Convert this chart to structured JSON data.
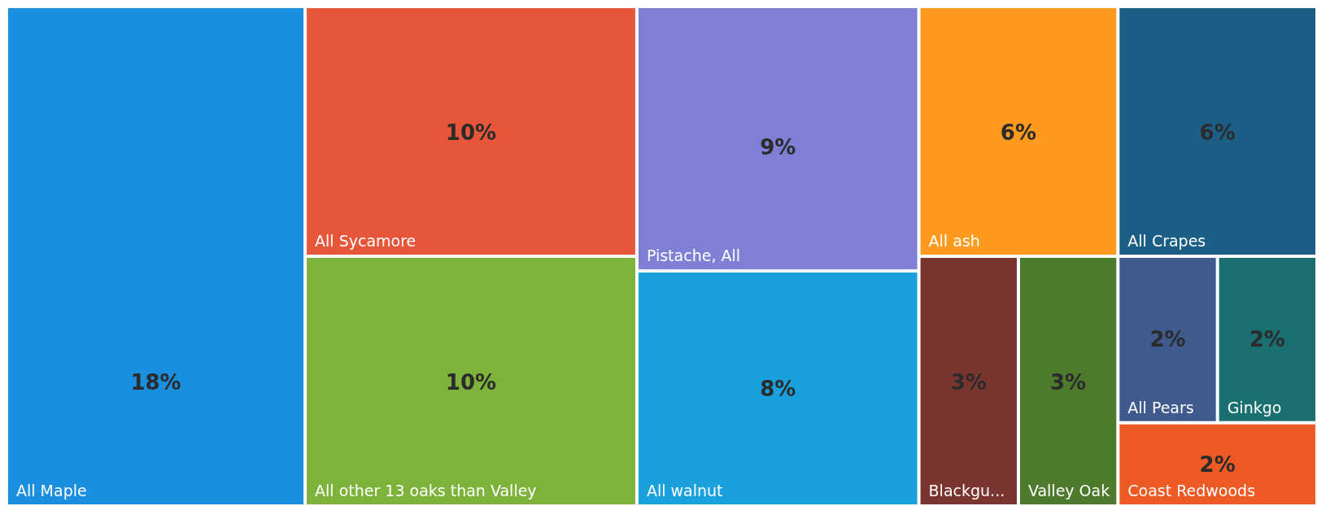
{
  "chart_data": {
    "type": "other",
    "categories": [
      "All Maple",
      "All Sycamore",
      "All other 13 oaks than Valley",
      "Pistache, All",
      "All walnut",
      "All ash",
      "All Crapes",
      "Blackgu...",
      "Valley Oak",
      "All Pears",
      "Ginkgo",
      "Coast Redwoods"
    ],
    "values": [
      18,
      10,
      10,
      9,
      8,
      6,
      6,
      3,
      3,
      2,
      2,
      2
    ],
    "value_labels": [
      "18%",
      "10%",
      "10%",
      "9%",
      "8%",
      "6%",
      "6%",
      "3%",
      "3%",
      "2%",
      "2%",
      "2%"
    ],
    "colors": [
      "#1a8fe0",
      "#e8563a",
      "#7db33a",
      "#7f7fd6",
      "#1aa0dc",
      "#ff9a1f",
      "#1c5f86",
      "#7b3530",
      "#4e7a2e",
      "#3f5a8c",
      "#1a6f70",
      "#ee5a24"
    ]
  }
}
